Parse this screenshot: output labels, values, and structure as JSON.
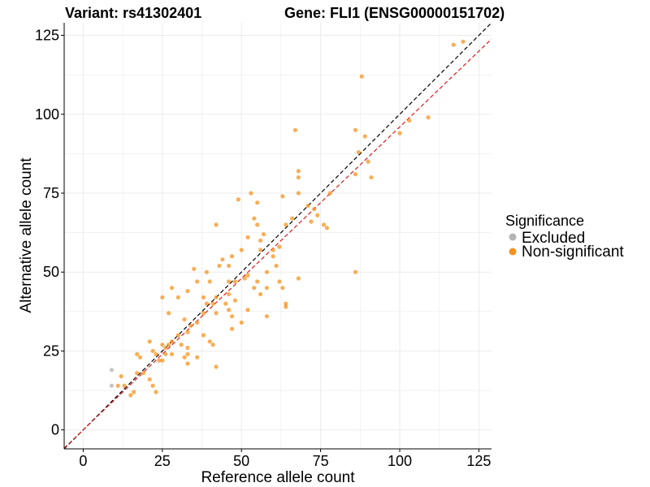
{
  "chart_data": {
    "type": "scatter",
    "title_left": "Variant: rs41302401",
    "title_right": "Gene: FLI1 (ENSG00000151702)",
    "xlabel": "Reference allele count",
    "ylabel": "Alternative allele count",
    "xlim": [
      -6,
      129
    ],
    "ylim": [
      -6,
      129
    ],
    "x_ticks": [
      0,
      25,
      50,
      75,
      100,
      125
    ],
    "y_ticks": [
      0,
      25,
      50,
      75,
      100,
      125
    ],
    "grid": true,
    "legend": {
      "title": "Significance",
      "position": "right",
      "entries": [
        {
          "label": "Excluded",
          "color": "#b3b3b3"
        },
        {
          "label": "Non-significant",
          "color": "#f7931e"
        }
      ]
    },
    "reference_lines": [
      {
        "style": "dashed",
        "color": "#000000",
        "slope": 1.0,
        "intercept": 0
      },
      {
        "style": "dashed",
        "color": "#e41a1c",
        "slope": 0.96,
        "intercept": 0
      }
    ],
    "series": [
      {
        "name": "Excluded",
        "color": "#b3b3b3",
        "points": [
          [
            9,
            19
          ],
          [
            9,
            14
          ]
        ]
      },
      {
        "name": "Non-significant",
        "color": "#f7931e",
        "points": [
          [
            117,
            122
          ],
          [
            120,
            123
          ],
          [
            88,
            112
          ],
          [
            86,
            95
          ],
          [
            103,
            98
          ],
          [
            109,
            99
          ],
          [
            100,
            94
          ],
          [
            89,
            93
          ],
          [
            87,
            88
          ],
          [
            86,
            81
          ],
          [
            90,
            85
          ],
          [
            91,
            80
          ],
          [
            67,
            95
          ],
          [
            68,
            82
          ],
          [
            68,
            80
          ],
          [
            68,
            75
          ],
          [
            63,
            74
          ],
          [
            53,
            75
          ],
          [
            49,
            73
          ],
          [
            55,
            72
          ],
          [
            71,
            71
          ],
          [
            73,
            70
          ],
          [
            78,
            75
          ],
          [
            72,
            66
          ],
          [
            74,
            68
          ],
          [
            76,
            65
          ],
          [
            77,
            64
          ],
          [
            66,
            67
          ],
          [
            64,
            65
          ],
          [
            54,
            67
          ],
          [
            55,
            65
          ],
          [
            57,
            62
          ],
          [
            56,
            60
          ],
          [
            52,
            61
          ],
          [
            42,
            65
          ],
          [
            62,
            58
          ],
          [
            60,
            57
          ],
          [
            56,
            57
          ],
          [
            50,
            57
          ],
          [
            47,
            55
          ],
          [
            60,
            55
          ],
          [
            44,
            54
          ],
          [
            61,
            52
          ],
          [
            68,
            48
          ],
          [
            58,
            50
          ],
          [
            46,
            52
          ],
          [
            43,
            52
          ],
          [
            52,
            49
          ],
          [
            51,
            48
          ],
          [
            55,
            47
          ],
          [
            48,
            47
          ],
          [
            35,
            51
          ],
          [
            39,
            50
          ],
          [
            36,
            47
          ],
          [
            40,
            47
          ],
          [
            46,
            47
          ],
          [
            62,
            47
          ],
          [
            86,
            50
          ],
          [
            28,
            45
          ],
          [
            33,
            44
          ],
          [
            30,
            42
          ],
          [
            25,
            42
          ],
          [
            38,
            42
          ],
          [
            42,
            42
          ],
          [
            46,
            43
          ],
          [
            54,
            45
          ],
          [
            58,
            45
          ],
          [
            63,
            45
          ],
          [
            64,
            40
          ],
          [
            64,
            39
          ],
          [
            56,
            43
          ],
          [
            48,
            41
          ],
          [
            45,
            40
          ],
          [
            39,
            40
          ],
          [
            41,
            40
          ],
          [
            42,
            37
          ],
          [
            46,
            38
          ],
          [
            52,
            38
          ],
          [
            58,
            36
          ],
          [
            47,
            36
          ],
          [
            38,
            37
          ],
          [
            36,
            34
          ],
          [
            34,
            33
          ],
          [
            27,
            37
          ],
          [
            32,
            35
          ],
          [
            33,
            31
          ],
          [
            38,
            30
          ],
          [
            47,
            32
          ],
          [
            50,
            34
          ],
          [
            40,
            28
          ],
          [
            41,
            27
          ],
          [
            31,
            27
          ],
          [
            28,
            28
          ],
          [
            27,
            27
          ],
          [
            25,
            27
          ],
          [
            22,
            25
          ],
          [
            23,
            24
          ],
          [
            26,
            24
          ],
          [
            28,
            24
          ],
          [
            33,
            24
          ],
          [
            32,
            23
          ],
          [
            33,
            21
          ],
          [
            36,
            23
          ],
          [
            21,
            28
          ],
          [
            18,
            23
          ],
          [
            17,
            24
          ],
          [
            24,
            22
          ],
          [
            25,
            22
          ],
          [
            19,
            18
          ],
          [
            17,
            18
          ],
          [
            21,
            16
          ],
          [
            22,
            14
          ],
          [
            23,
            12
          ],
          [
            12,
            17
          ],
          [
            13,
            14
          ],
          [
            16,
            12
          ],
          [
            15,
            11
          ],
          [
            11,
            14
          ],
          [
            42,
            20
          ],
          [
            33,
            26
          ],
          [
            26,
            26
          ],
          [
            30,
            30
          ]
        ]
      }
    ]
  }
}
